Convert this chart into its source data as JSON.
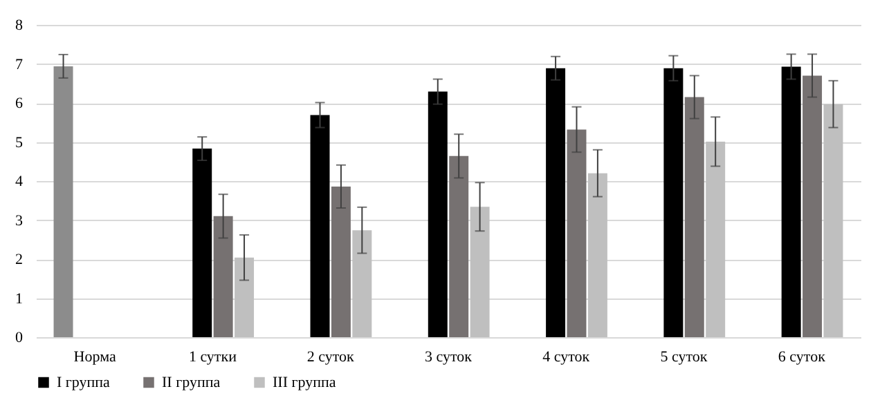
{
  "chart_data": {
    "type": "bar",
    "categories": [
      "Норма",
      "1 сутки",
      "2 суток",
      "3 суток",
      "4 суток",
      "5 суток",
      "6 суток"
    ],
    "series": [
      {
        "color": "#8c8c8c",
        "values": [
          6.94,
          null,
          null,
          null,
          null,
          null,
          null
        ],
        "errors": [
          0.3,
          null,
          null,
          null,
          null,
          null,
          null
        ]
      },
      {
        "name": "I группа",
        "color": "#000000",
        "values": [
          null,
          4.83,
          5.69,
          6.29,
          6.89,
          6.89,
          6.93
        ],
        "errors": [
          null,
          0.3,
          0.32,
          0.32,
          0.3,
          0.32,
          0.32
        ]
      },
      {
        "name": "II группа",
        "color": "#767171",
        "values": [
          null,
          3.1,
          3.86,
          4.64,
          5.32,
          6.15,
          6.7
        ],
        "errors": [
          null,
          0.56,
          0.55,
          0.56,
          0.58,
          0.55,
          0.55
        ]
      },
      {
        "name": "III группа",
        "color": "#bfbfbf",
        "values": [
          null,
          2.04,
          2.74,
          3.34,
          4.2,
          5.01,
          5.97
        ],
        "errors": [
          null,
          0.58,
          0.59,
          0.62,
          0.6,
          0.63,
          0.6
        ]
      }
    ],
    "ylim": [
      0,
      8
    ],
    "yticks": [
      0,
      1,
      2,
      3,
      4,
      5,
      6,
      7,
      8
    ],
    "grid": "y",
    "legend": "bottom"
  }
}
